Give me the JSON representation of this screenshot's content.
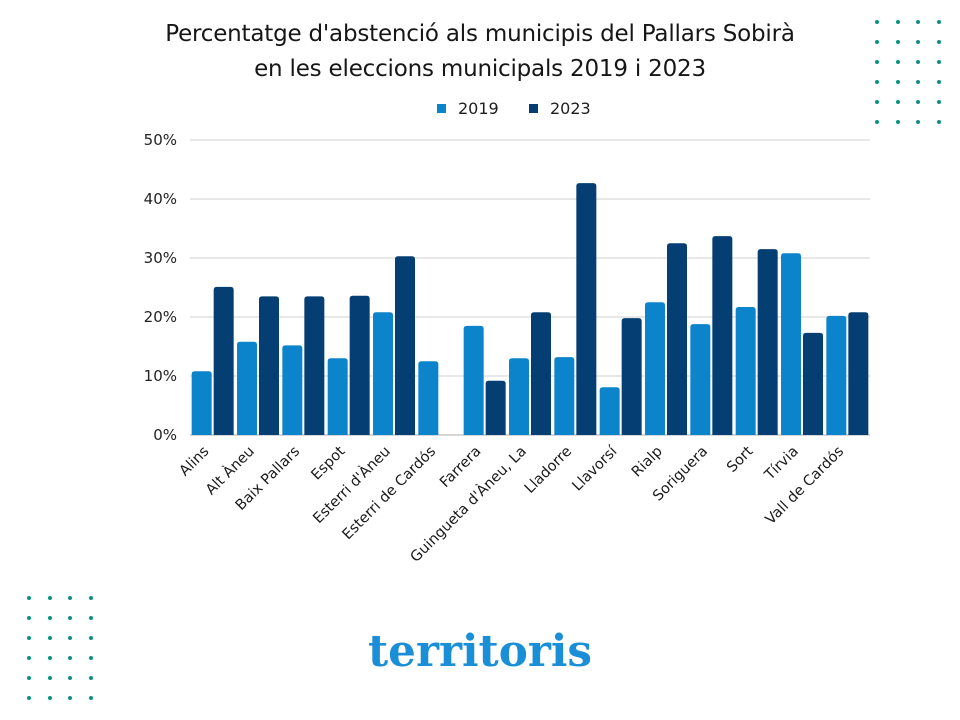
{
  "chart_data": {
    "type": "bar",
    "title": "Percentatge d'abstenció als municipis del Pallars Sobirà",
    "subtitle": "en les eleccions municipals 2019 i 2023",
    "xlabel": "",
    "ylabel": "",
    "ylim": [
      0,
      50
    ],
    "yticks": [
      0,
      10,
      20,
      30,
      40,
      50
    ],
    "ytick_labels": [
      "0%",
      "10%",
      "20%",
      "30%",
      "40%",
      "50%"
    ],
    "grid": true,
    "legend_position": "top-center",
    "categories": [
      "Alins",
      "Alt Àneu",
      "Baix Pallars",
      "Espot",
      "Esterri d'Àneu",
      "Esterri de Cardós",
      "Farrera",
      "Guingueta d'Àneu, La",
      "Lladorre",
      "Llavorsí",
      "Rialp",
      "Soriguera",
      "Sort",
      "Tírvia",
      "Vall de Cardós"
    ],
    "series": [
      {
        "name": "2019",
        "color": "#0b84cc",
        "values": [
          10.8,
          15.8,
          15.2,
          13.0,
          20.8,
          12.5,
          18.5,
          13.0,
          13.2,
          8.1,
          22.5,
          18.8,
          21.7,
          30.8,
          20.2
        ]
      },
      {
        "name": "2023",
        "color": "#053e73",
        "values": [
          25.1,
          23.5,
          23.5,
          23.6,
          30.3,
          null,
          9.2,
          20.8,
          42.7,
          19.8,
          32.5,
          33.7,
          31.5,
          17.3,
          20.8
        ]
      }
    ]
  },
  "legend": [
    {
      "label": "2019",
      "color": "#0b84cc"
    },
    {
      "label": "2023",
      "color": "#053e73"
    }
  ],
  "branding": {
    "logo_text": "territoris",
    "logo_color": "#1a8fd8",
    "dots_color": "#0e8f82"
  }
}
